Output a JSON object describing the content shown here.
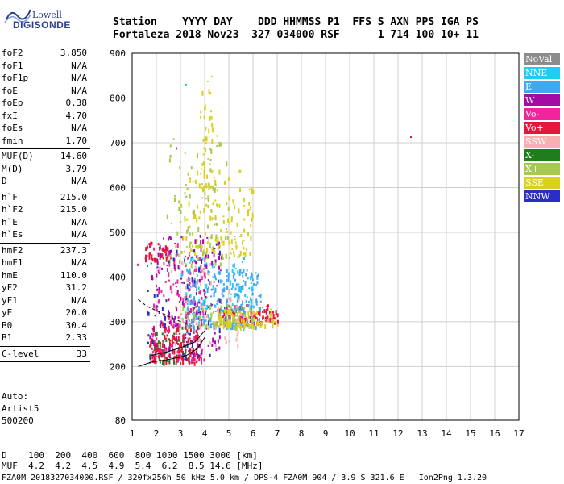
{
  "logo": {
    "line1": "Lowell",
    "line2": "DIGISONDE"
  },
  "header": {
    "row1": "Station    YYYY DAY    DDD HHMMSS P1  FFS S AXN PPS IGA PS",
    "row2": "Fortaleza 2018 Nov23  327 034000 RSF      1 714 100 10+ 11"
  },
  "params": {
    "group1": [
      {
        "k": "foF2",
        "v": "3.850"
      },
      {
        "k": "foF1",
        "v": "N/A"
      },
      {
        "k": "foF1p",
        "v": "N/A"
      },
      {
        "k": "foE",
        "v": "N/A"
      },
      {
        "k": "foEp",
        "v": "0.38"
      },
      {
        "k": "fxI",
        "v": "4.70"
      },
      {
        "k": "foEs",
        "v": "N/A"
      },
      {
        "k": "fmin",
        "v": "1.70"
      }
    ],
    "group2": [
      {
        "k": "MUF(D)",
        "v": "14.60"
      },
      {
        "k": "M(D)",
        "v": "3.79"
      },
      {
        "k": "D",
        "v": "N/A"
      }
    ],
    "group3": [
      {
        "k": "h`F",
        "v": "215.0"
      },
      {
        "k": "h`F2",
        "v": "215.0"
      },
      {
        "k": "h`E",
        "v": "N/A"
      },
      {
        "k": "h`Es",
        "v": "N/A"
      }
    ],
    "group4": [
      {
        "k": "hmF2",
        "v": "237.3"
      },
      {
        "k": "hmF1",
        "v": "N/A"
      },
      {
        "k": "hmE",
        "v": "110.0"
      },
      {
        "k": "yF2",
        "v": "31.2"
      },
      {
        "k": "yF1",
        "v": "N/A"
      },
      {
        "k": "yE",
        "v": "20.0"
      },
      {
        "k": "B0",
        "v": "30.4"
      },
      {
        "k": "B1",
        "v": "2.33"
      }
    ],
    "group5": [
      {
        "k": "C-level",
        "v": "33"
      }
    ]
  },
  "auto": {
    "line1": "Auto:",
    "line2": "Artist5",
    "line3": "500200"
  },
  "legend": [
    {
      "label": "NoVal",
      "color": "#8c8c8c"
    },
    {
      "label": "NNE",
      "color": "#22ccf0"
    },
    {
      "label": "E",
      "color": "#3fa9ef"
    },
    {
      "label": "W",
      "color": "#a40ba4"
    },
    {
      "label": "Vo-",
      "color": "#f0259b"
    },
    {
      "label": "Vo+",
      "color": "#e4163c"
    },
    {
      "label": "SSW",
      "color": "#f7b0b2"
    },
    {
      "label": "X-",
      "color": "#1f7d1c"
    },
    {
      "label": "X+",
      "color": "#a7c94f"
    },
    {
      "label": "SSE",
      "color": "#d9d11d"
    },
    {
      "label": "NNW",
      "color": "#2b2ec6"
    }
  ],
  "bottom": {
    "row1": "D    100  200  400  600  800 1000 1500 3000 [km]",
    "row2": "MUF  4.2  4.2  4.5  4.9  5.4  6.2  8.5 14.6 [MHz]"
  },
  "footer": "FZA0M_2018327034000.RSF / 320fx256h 50 kHz 5.0 km / DPS-4 FZA0M 904 / 3.9 S 321.6 E   Ion2Png 1.3.20",
  "chart_data": {
    "type": "scatter",
    "xlim": [
      1,
      17
    ],
    "ylim": [
      80,
      900
    ],
    "xticks": [
      1,
      2,
      3,
      4,
      5,
      6,
      7,
      8,
      9,
      10,
      11,
      12,
      13,
      14,
      15,
      16,
      17
    ],
    "yticks": [
      80,
      200,
      300,
      400,
      500,
      600,
      700,
      800,
      900
    ],
    "clusters": [
      {
        "name": "X-",
        "x": [
          1.7,
          3.4
        ],
        "y": [
          210,
          290
        ],
        "n": 60
      },
      {
        "name": "Vo-",
        "x": [
          1.8,
          4.0
        ],
        "y": [
          215,
          480
        ],
        "n": 180
      },
      {
        "name": "Vo+",
        "x": [
          1.7,
          3.8
        ],
        "y": [
          210,
          300
        ],
        "n": 160
      },
      {
        "name": "Vo+",
        "x": [
          4.5,
          7.0
        ],
        "y": [
          300,
          340
        ],
        "n": 120
      },
      {
        "name": "E",
        "x": [
          3.2,
          6.3
        ],
        "y": [
          290,
          420
        ],
        "n": 220
      },
      {
        "name": "NNE",
        "x": [
          3.0,
          6.0
        ],
        "y": [
          330,
          450
        ],
        "n": 70
      },
      {
        "name": "W",
        "x": [
          1.7,
          4.7
        ],
        "y": [
          230,
          500
        ],
        "n": 120
      },
      {
        "name": "X+",
        "x": [
          3.0,
          6.0
        ],
        "y": [
          290,
          340
        ],
        "n": 90
      },
      {
        "name": "SSE",
        "x": [
          4.5,
          7.0
        ],
        "y": [
          290,
          330
        ],
        "n": 80
      },
      {
        "name": "SSE",
        "x": [
          3.0,
          6.0
        ],
        "y": [
          450,
          640
        ],
        "n": 140
      },
      {
        "name": "X+",
        "x": [
          2.4,
          5.0
        ],
        "y": [
          430,
          720
        ],
        "n": 90
      },
      {
        "name": "SSE",
        "x": [
          3.8,
          4.3
        ],
        "y": [
          600,
          880
        ],
        "n": 45
      },
      {
        "name": "NNW",
        "x": [
          1.6,
          4.6
        ],
        "y": [
          220,
          480
        ],
        "n": 70
      },
      {
        "name": "Vo+",
        "x": [
          1.5,
          2.5
        ],
        "y": [
          440,
          480
        ],
        "n": 40
      },
      {
        "name": "SSW",
        "x": [
          2.5,
          5.5
        ],
        "y": [
          250,
          450
        ],
        "n": 50
      }
    ],
    "isolated_points": [
      {
        "name": "Vo+",
        "x": 12.5,
        "y": 716
      },
      {
        "name": "NNE",
        "x": 3.2,
        "y": 832
      },
      {
        "name": "Vo-",
        "x": 1.2,
        "y": 430
      },
      {
        "name": "X-",
        "x": 1.6,
        "y": 428
      },
      {
        "name": "Vo-",
        "x": 2.8,
        "y": 690
      }
    ],
    "profile_curves": [
      {
        "name": "E-layer profile",
        "x": [
          1.25,
          1.8,
          2.4,
          2.9,
          3.25,
          3.7,
          4.0
        ],
        "y": [
          200,
          210,
          215,
          220,
          225,
          240,
          265
        ]
      },
      {
        "name": "F-trace lower",
        "x": [
          1.8,
          2.4,
          3.0,
          3.6,
          4.0
        ],
        "y": [
          225,
          232,
          242,
          255,
          280
        ]
      },
      {
        "name": "dashed",
        "x": [
          1.25,
          1.6,
          2.2,
          2.8,
          3.25
        ],
        "y": [
          350,
          335,
          320,
          305,
          295
        ]
      }
    ]
  }
}
